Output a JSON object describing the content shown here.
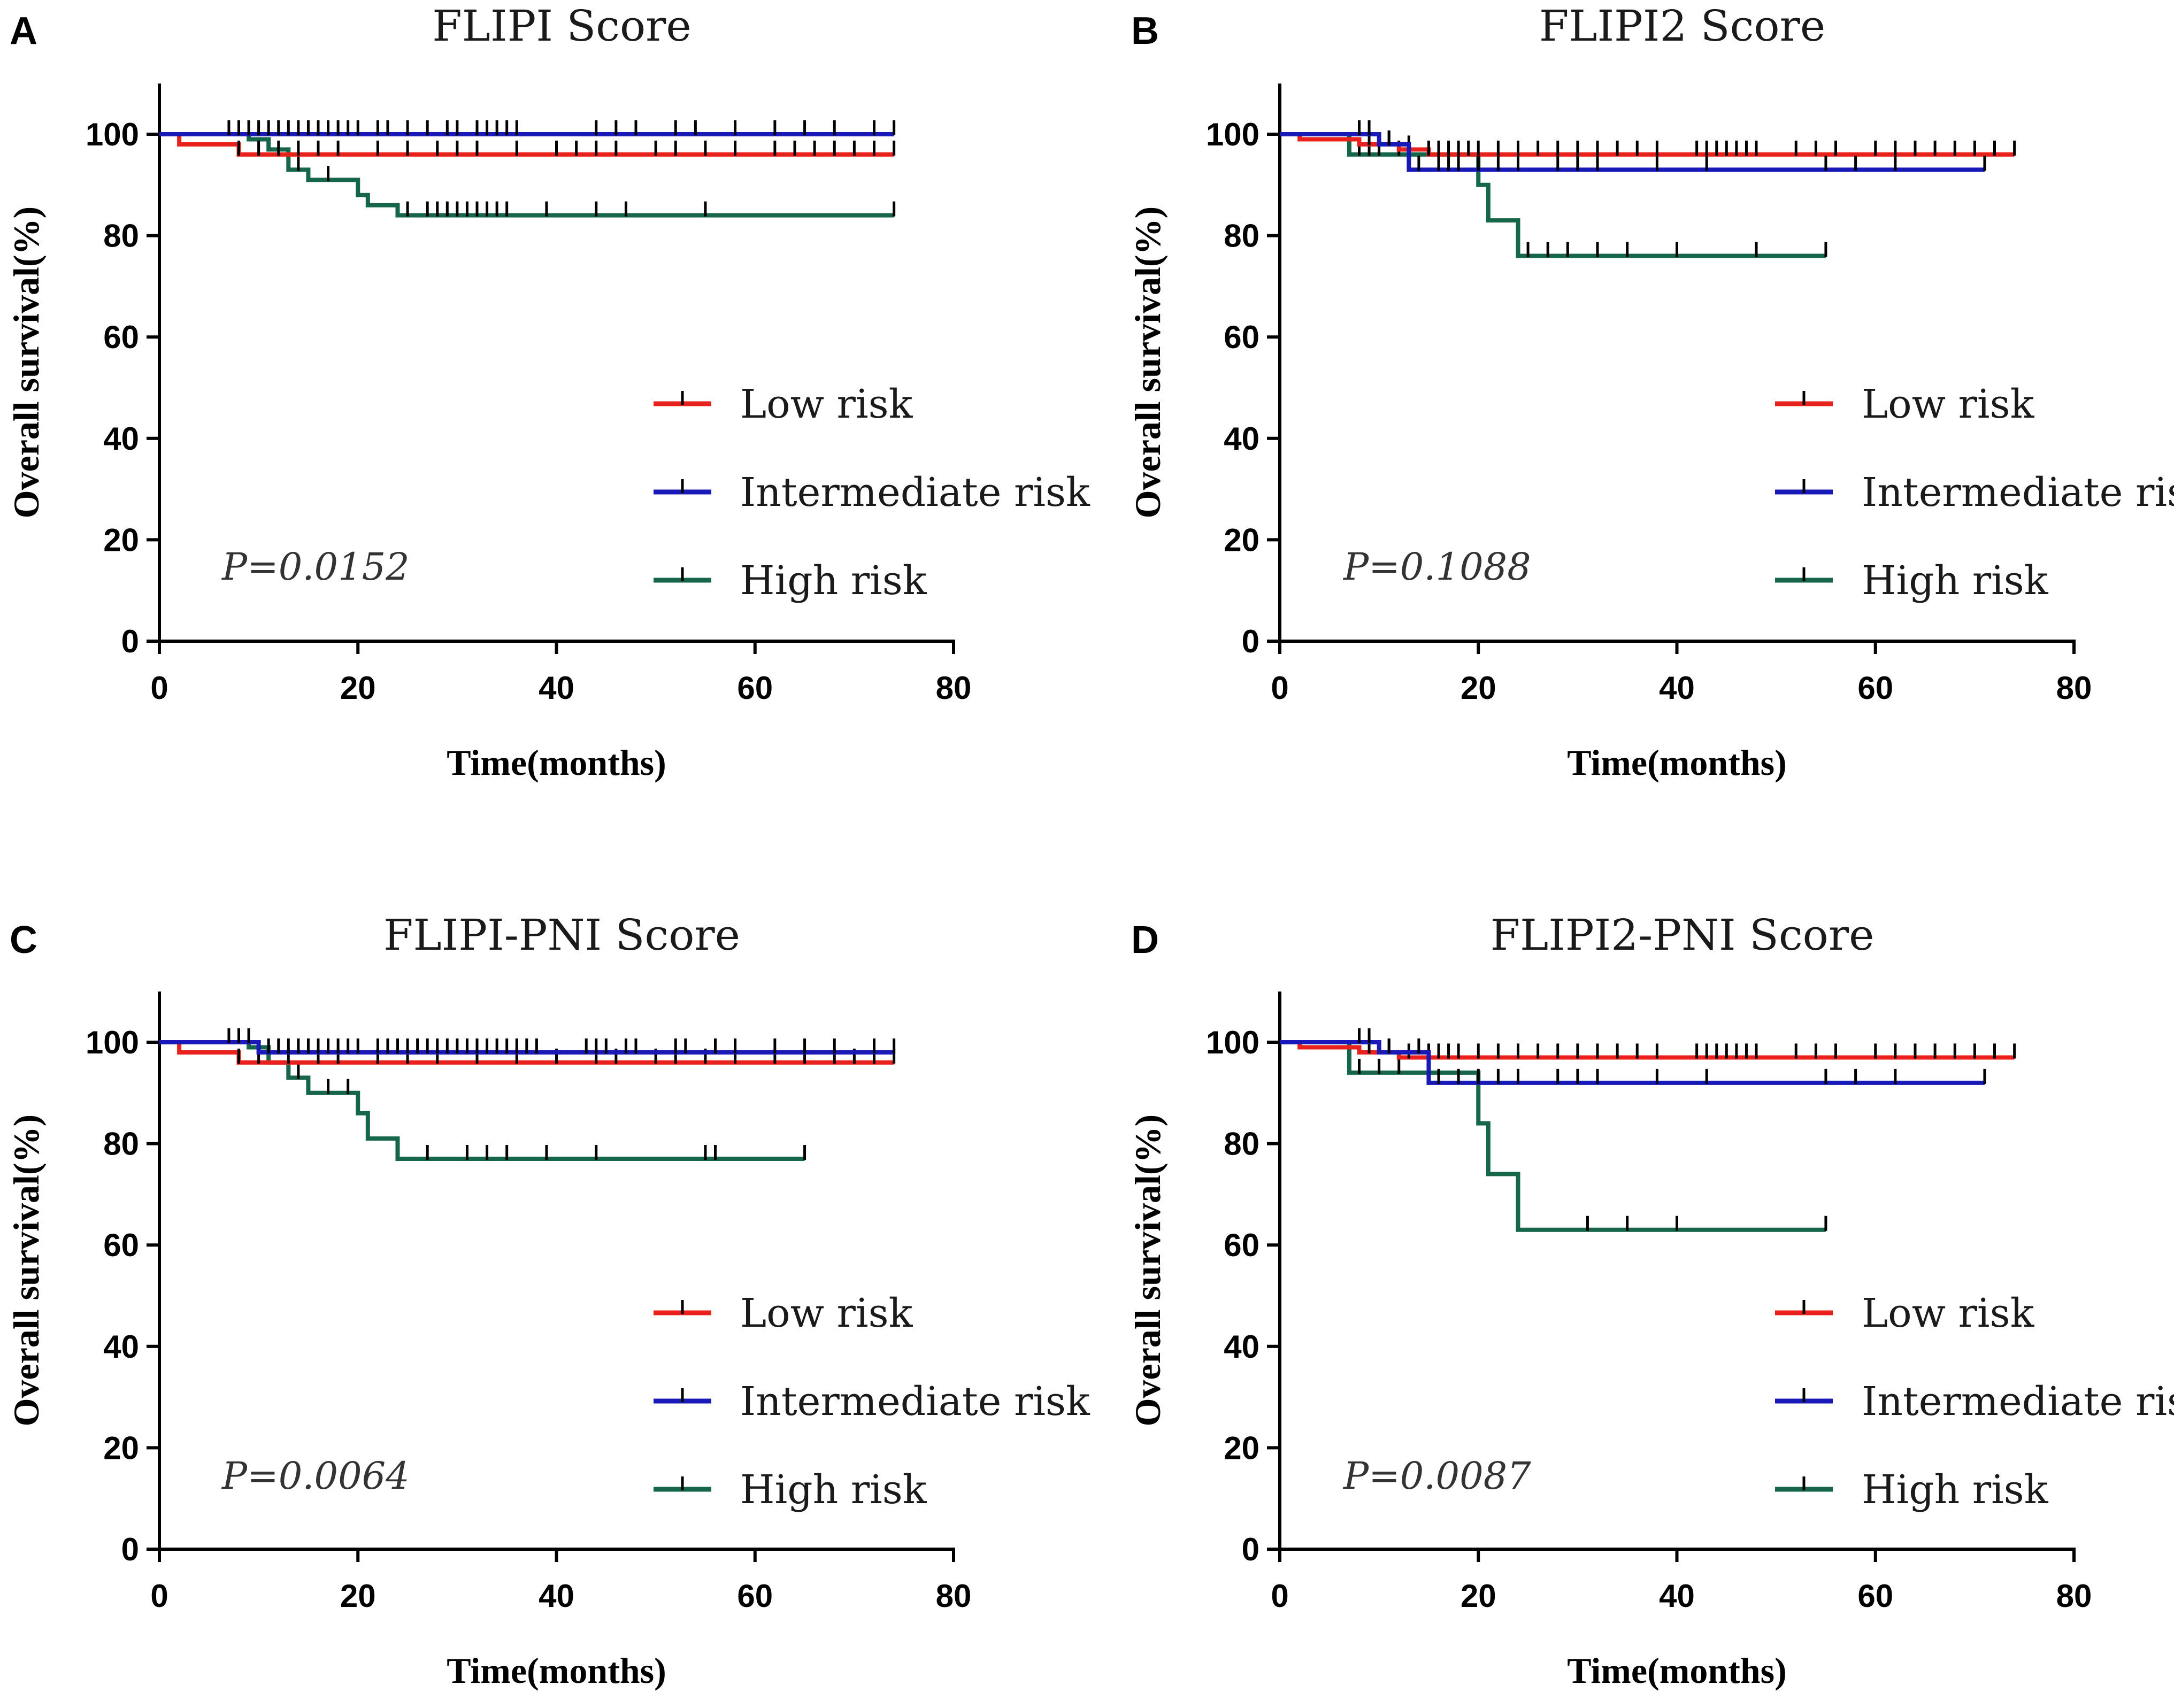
{
  "chart_data": [
    {
      "type": "line",
      "panel_label": "A",
      "title": "FLIPI Score",
      "xlabel": "Time(months)",
      "ylabel": "Overall survival(%)",
      "xlim": [
        0,
        80
      ],
      "ylim": [
        0,
        110
      ],
      "xticks": [
        "0",
        "20",
        "40",
        "60",
        "80"
      ],
      "yticks": [
        "0",
        "20",
        "40",
        "60",
        "80",
        "100"
      ],
      "p_value": "P=0.0152",
      "series": [
        {
          "name": "Low risk",
          "color": "#e8211c",
          "steps": [
            [
              0,
              100
            ],
            [
              2,
              98
            ],
            [
              8,
              96
            ],
            [
              74,
              96
            ]
          ],
          "censors": [
            8,
            10,
            12,
            14,
            16,
            18,
            22,
            25,
            28,
            30,
            32,
            36,
            40,
            42,
            44,
            46,
            50,
            52,
            55,
            58,
            62,
            64,
            66,
            68,
            70,
            72,
            74
          ]
        },
        {
          "name": "Intermediate risk",
          "color": "#1919b8",
          "steps": [
            [
              0,
              100
            ],
            [
              74,
              100
            ]
          ],
          "censors": [
            7,
            8,
            9,
            10,
            11,
            12,
            13,
            14,
            15,
            16,
            17,
            18,
            19,
            20,
            22,
            23,
            25,
            27,
            29,
            30,
            32,
            33,
            34,
            35,
            36,
            44,
            46,
            48,
            52,
            54,
            58,
            62,
            65,
            68,
            72,
            74
          ]
        },
        {
          "name": "High risk",
          "color": "#16664a",
          "steps": [
            [
              0,
              100
            ],
            [
              7,
              100
            ],
            [
              9,
              99
            ],
            [
              11,
              97
            ],
            [
              13,
              93
            ],
            [
              15,
              91
            ],
            [
              20,
              88
            ],
            [
              21,
              86
            ],
            [
              24,
              84
            ],
            [
              74,
              84
            ]
          ],
          "censors": [
            8,
            14,
            17,
            25,
            27,
            28,
            29,
            30,
            31,
            32,
            33,
            34,
            35,
            39,
            44,
            47,
            55,
            74
          ]
        }
      ]
    },
    {
      "type": "line",
      "panel_label": "B",
      "title": "FLIPI2 Score",
      "xlabel": "Time(months)",
      "ylabel": "Overall survival(%)",
      "xlim": [
        0,
        80
      ],
      "ylim": [
        0,
        110
      ],
      "xticks": [
        "0",
        "20",
        "40",
        "60",
        "80"
      ],
      "yticks": [
        "0",
        "20",
        "40",
        "60",
        "80",
        "100"
      ],
      "p_value": "P=0.1088",
      "series": [
        {
          "name": "Low risk",
          "color": "#e8211c",
          "steps": [
            [
              0,
              100
            ],
            [
              2,
              99
            ],
            [
              8,
              98
            ],
            [
              12,
              97
            ],
            [
              15,
              96
            ],
            [
              74,
              96
            ]
          ],
          "censors": [
            9,
            11,
            13,
            15,
            16,
            17,
            18,
            19,
            20,
            22,
            24,
            26,
            28,
            30,
            32,
            34,
            36,
            38,
            42,
            43,
            44,
            45,
            46,
            47,
            48,
            52,
            54,
            56,
            60,
            62,
            64,
            66,
            68,
            70,
            72,
            74
          ]
        },
        {
          "name": "Intermediate risk",
          "color": "#1919b8",
          "steps": [
            [
              0,
              100
            ],
            [
              10,
              98
            ],
            [
              13,
              93
            ],
            [
              71,
              93
            ]
          ],
          "censors": [
            8,
            9,
            11,
            14,
            16,
            17,
            18,
            20,
            22,
            24,
            28,
            30,
            32,
            38,
            43,
            55,
            58,
            62,
            71
          ]
        },
        {
          "name": "High risk",
          "color": "#16664a",
          "steps": [
            [
              0,
              100
            ],
            [
              7,
              96
            ],
            [
              20,
              90
            ],
            [
              21,
              83
            ],
            [
              24,
              76
            ],
            [
              55,
              76
            ]
          ],
          "censors": [
            8,
            9,
            10,
            12,
            25,
            27,
            29,
            32,
            35,
            40,
            48,
            55
          ]
        }
      ]
    },
    {
      "type": "line",
      "panel_label": "C",
      "title": "FLIPI-PNI Score",
      "xlabel": "Time(months)",
      "ylabel": "Overall survival(%)",
      "xlim": [
        0,
        80
      ],
      "ylim": [
        0,
        110
      ],
      "xticks": [
        "0",
        "20",
        "40",
        "60",
        "80"
      ],
      "yticks": [
        "0",
        "20",
        "40",
        "60",
        "80",
        "100"
      ],
      "p_value": "P=0.0064",
      "series": [
        {
          "name": "Low risk",
          "color": "#e8211c",
          "steps": [
            [
              0,
              100
            ],
            [
              2,
              98
            ],
            [
              8,
              96
            ],
            [
              74,
              96
            ]
          ],
          "censors": [
            8,
            10,
            13,
            16,
            18,
            22,
            25,
            28,
            32,
            36,
            40,
            44,
            46,
            50,
            52,
            55,
            58,
            62,
            65,
            68,
            70,
            72,
            74
          ]
        },
        {
          "name": "Intermediate risk",
          "color": "#1919b8",
          "steps": [
            [
              0,
              100
            ],
            [
              8,
              100
            ],
            [
              10,
              98
            ],
            [
              74,
              98
            ]
          ],
          "censors": [
            7,
            8,
            9,
            11,
            12,
            13,
            14,
            15,
            16,
            17,
            18,
            19,
            20,
            22,
            23,
            24,
            25,
            26,
            27,
            28,
            29,
            30,
            31,
            32,
            33,
            34,
            35,
            36,
            37,
            38,
            43,
            44,
            45,
            47,
            48,
            52,
            53,
            56,
            58,
            62,
            65,
            68,
            72,
            74
          ]
        },
        {
          "name": "High risk",
          "color": "#16664a",
          "steps": [
            [
              0,
              100
            ],
            [
              9,
              99
            ],
            [
              11,
              96
            ],
            [
              13,
              93
            ],
            [
              15,
              90
            ],
            [
              20,
              86
            ],
            [
              21,
              81
            ],
            [
              24,
              77
            ],
            [
              65,
              77
            ]
          ],
          "censors": [
            8,
            14,
            17,
            19,
            27,
            31,
            33,
            35,
            39,
            44,
            55,
            56,
            65
          ]
        }
      ]
    },
    {
      "type": "line",
      "panel_label": "D",
      "title": "FLIPI2-PNI Score",
      "xlabel": "Time(months)",
      "ylabel": "Overall survival(%)",
      "xlim": [
        0,
        80
      ],
      "ylim": [
        0,
        110
      ],
      "xticks": [
        "0",
        "20",
        "40",
        "60",
        "80"
      ],
      "yticks": [
        "0",
        "20",
        "40",
        "60",
        "80",
        "100"
      ],
      "p_value": "P=0.0087",
      "series": [
        {
          "name": "Low risk",
          "color": "#e8211c",
          "steps": [
            [
              0,
              100
            ],
            [
              2,
              99
            ],
            [
              8,
              98
            ],
            [
              12,
              97
            ],
            [
              74,
              97
            ]
          ],
          "censors": [
            9,
            11,
            13,
            15,
            16,
            17,
            18,
            20,
            22,
            24,
            26,
            28,
            30,
            32,
            34,
            36,
            38,
            42,
            43,
            44,
            45,
            46,
            47,
            48,
            52,
            54,
            56,
            60,
            62,
            64,
            66,
            68,
            70,
            72,
            74
          ]
        },
        {
          "name": "Intermediate risk",
          "color": "#1919b8",
          "steps": [
            [
              0,
              100
            ],
            [
              10,
              98
            ],
            [
              15,
              92
            ],
            [
              71,
              92
            ]
          ],
          "censors": [
            8,
            9,
            11,
            14,
            16,
            18,
            20,
            22,
            24,
            28,
            30,
            32,
            38,
            43,
            55,
            58,
            62,
            71
          ]
        },
        {
          "name": "High risk",
          "color": "#16664a",
          "steps": [
            [
              0,
              100
            ],
            [
              7,
              94
            ],
            [
              20,
              84
            ],
            [
              21,
              74
            ],
            [
              24,
              63
            ],
            [
              55,
              63
            ]
          ],
          "censors": [
            8,
            10,
            12,
            31,
            35,
            40,
            55
          ]
        }
      ]
    }
  ]
}
